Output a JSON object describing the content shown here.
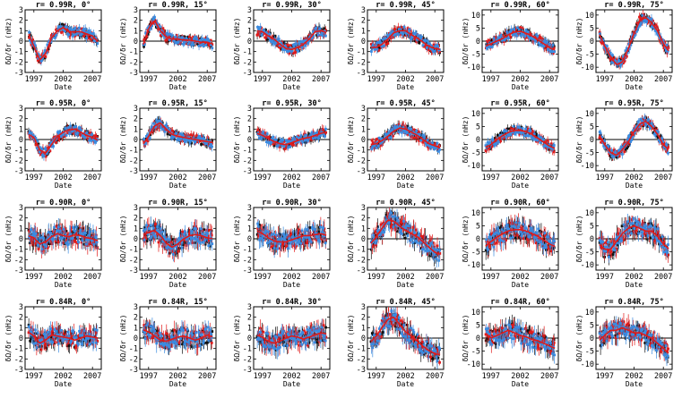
{
  "figure": {
    "rows": [
      {
        "ylabel": "δΩ/δr (nHz)",
        "xticks": [
          "1997",
          "2002",
          "2007"
        ],
        "xlabel": "Date",
        "panels": [
          {
            "title": "r= 0.99R, 0°",
            "yticks": [
              "-3",
              "-2",
              "-1",
              "0",
              "1",
              "2",
              "3"
            ]
          },
          {
            "title": "r= 0.99R, 15°",
            "yticks": [
              "-3",
              "-2",
              "-1",
              "0",
              "1",
              "2",
              "3"
            ]
          },
          {
            "title": "r= 0.99R, 30°",
            "yticks": [
              "-3",
              "-2",
              "-1",
              "0",
              "1",
              "2",
              "3"
            ]
          },
          {
            "title": "r= 0.99R, 45°",
            "yticks": [
              "-3",
              "-2",
              "-1",
              "0",
              "1",
              "2",
              "3"
            ]
          },
          {
            "title": "r= 0.99R, 60°",
            "yticks": [
              "-10",
              "-5",
              "0",
              "5",
              "10"
            ]
          },
          {
            "title": "r= 0.99R, 75°",
            "yticks": [
              "-10",
              "-5",
              "0",
              "5",
              "10"
            ]
          }
        ]
      },
      {
        "ylabel": "δΩ/δr (nHz)",
        "xticks": [
          "1997",
          "2002",
          "2007"
        ],
        "xlabel": "Date",
        "panels": [
          {
            "title": "r= 0.95R, 0°",
            "yticks": [
              "-3",
              "-2",
              "-1",
              "0",
              "1",
              "2",
              "3"
            ]
          },
          {
            "title": "r= 0.95R, 15°",
            "yticks": [
              "-3",
              "-2",
              "-1",
              "0",
              "1",
              "2",
              "3"
            ]
          },
          {
            "title": "r= 0.95R, 30°",
            "yticks": [
              "-3",
              "-2",
              "-1",
              "0",
              "1",
              "2",
              "3"
            ]
          },
          {
            "title": "r= 0.95R, 45°",
            "yticks": [
              "-3",
              "-2",
              "-1",
              "0",
              "1",
              "2",
              "3"
            ]
          },
          {
            "title": "r= 0.95R, 60°",
            "yticks": [
              "-10",
              "-5",
              "0",
              "5",
              "10"
            ]
          },
          {
            "title": "r= 0.95R, 75°",
            "yticks": [
              "-10",
              "-5",
              "0",
              "5",
              "10"
            ]
          }
        ]
      },
      {
        "ylabel": "δΩ/δr (nHz)",
        "xticks": [
          "1997",
          "2002",
          "2007"
        ],
        "xlabel": "Date",
        "panels": [
          {
            "title": "r= 0.90R, 0°",
            "yticks": [
              "-3",
              "-2",
              "-1",
              "0",
              "1",
              "2",
              "3"
            ]
          },
          {
            "title": "r= 0.90R, 15°",
            "yticks": [
              "-3",
              "-2",
              "-1",
              "0",
              "1",
              "2",
              "3"
            ]
          },
          {
            "title": "r= 0.90R, 30°",
            "yticks": [
              "-3",
              "-2",
              "-1",
              "0",
              "1",
              "2",
              "3"
            ]
          },
          {
            "title": "r= 0.90R, 45°",
            "yticks": [
              "-3",
              "-2",
              "-1",
              "0",
              "1",
              "2",
              "3"
            ]
          },
          {
            "title": "r= 0.90R, 60°",
            "yticks": [
              "-10",
              "-5",
              "0",
              "5",
              "10"
            ]
          },
          {
            "title": "r= 0.90R, 75°",
            "yticks": [
              "-10",
              "-5",
              "0",
              "5",
              "10"
            ]
          }
        ]
      },
      {
        "ylabel": "δΩ/δr (nHz)",
        "xticks": [
          "1997",
          "2002",
          "2007"
        ],
        "xlabel": "Date",
        "panels": [
          {
            "title": "r= 0.84R, 0°",
            "yticks": [
              "-3",
              "-2",
              "-1",
              "0",
              "1",
              "2",
              "3"
            ]
          },
          {
            "title": "r= 0.84R, 15°",
            "yticks": [
              "-3",
              "-2",
              "-1",
              "0",
              "1",
              "2",
              "3"
            ]
          },
          {
            "title": "r= 0.84R, 30°",
            "yticks": [
              "-3",
              "-2",
              "-1",
              "0",
              "1",
              "2",
              "3"
            ]
          },
          {
            "title": "r= 0.84R, 45°",
            "yticks": [
              "-3",
              "-2",
              "-1",
              "0",
              "1",
              "2",
              "3"
            ]
          },
          {
            "title": "r= 0.84R, 60°",
            "yticks": [
              "-10",
              "-5",
              "0",
              "5",
              "10"
            ]
          },
          {
            "title": "r= 0.84R, 75°",
            "yticks": [
              "-10",
              "-5",
              "0",
              "5",
              "10"
            ]
          }
        ]
      }
    ]
  },
  "chart_data": {
    "type": "scatter",
    "grid": false,
    "x_range": [
      1995.5,
      2008.5
    ],
    "series_colors": [
      "#111111",
      "#3b8be0",
      "#e01a1a"
    ],
    "panels": [
      {
        "row": 0,
        "col": 0,
        "ylim": [
          -3,
          3
        ],
        "x": [
          1996,
          1997,
          1998,
          1999,
          2000,
          2001,
          2002,
          2003,
          2004,
          2005,
          2006,
          2007,
          2008
        ],
        "y": [
          0.8,
          -0.5,
          -1.8,
          -1.2,
          0.3,
          1.0,
          1.3,
          0.9,
          0.9,
          0.9,
          0.7,
          0.5,
          -0.1
        ]
      },
      {
        "row": 0,
        "col": 1,
        "ylim": [
          -3,
          3
        ],
        "x": [
          1996,
          1997,
          1998,
          1999,
          2000,
          2001,
          2002,
          2003,
          2004,
          2005,
          2006,
          2007,
          2008
        ],
        "y": [
          -0.5,
          1.2,
          2.0,
          1.0,
          0.4,
          0.2,
          0.2,
          0.1,
          0.1,
          0.0,
          -0.1,
          -0.1,
          -0.3
        ]
      },
      {
        "row": 0,
        "col": 2,
        "ylim": [
          -3,
          3
        ],
        "x": [
          1996,
          1997,
          1998,
          1999,
          2000,
          2001,
          2002,
          2003,
          2004,
          2005,
          2006,
          2007,
          2008
        ],
        "y": [
          1.0,
          0.9,
          0.5,
          0.2,
          -0.3,
          -0.7,
          -0.8,
          -0.6,
          -0.3,
          0.2,
          0.9,
          1.0,
          0.8
        ]
      },
      {
        "row": 0,
        "col": 3,
        "ylim": [
          -3,
          3
        ],
        "x": [
          1996,
          1997,
          1998,
          1999,
          2000,
          2001,
          2002,
          2003,
          2004,
          2005,
          2006,
          2007,
          2008
        ],
        "y": [
          -0.6,
          -0.6,
          -0.3,
          0.2,
          0.8,
          1.0,
          1.0,
          0.6,
          0.3,
          -0.1,
          -0.5,
          -0.7,
          -0.8
        ]
      },
      {
        "row": 0,
        "col": 4,
        "ylim": [
          -12,
          12
        ],
        "x": [
          1996,
          1997,
          1998,
          1999,
          2000,
          2001,
          2002,
          2003,
          2004,
          2005,
          2006,
          2007,
          2008
        ],
        "y": [
          -2,
          -1,
          0,
          1,
          2.5,
          3.5,
          3.8,
          3,
          2,
          0.5,
          -1,
          -2.5,
          -3.5
        ]
      },
      {
        "row": 0,
        "col": 5,
        "ylim": [
          -12,
          12
        ],
        "x": [
          1996,
          1997,
          1998,
          1999,
          2000,
          2001,
          2002,
          2003,
          2004,
          2005,
          2006,
          2007,
          2008
        ],
        "y": [
          3,
          -2,
          -6,
          -9,
          -8,
          -3,
          3,
          8,
          9,
          7,
          4,
          -1,
          -4
        ]
      },
      {
        "row": 1,
        "col": 0,
        "ylim": [
          -3,
          3
        ],
        "x": [
          1996,
          1997,
          1998,
          1999,
          2000,
          2001,
          2002,
          2003,
          2004,
          2005,
          2006,
          2007,
          2008
        ],
        "y": [
          0.5,
          0.2,
          -1.0,
          -1.3,
          -0.5,
          0.3,
          0.7,
          0.9,
          1.0,
          0.7,
          0.4,
          0.2,
          -0.1
        ]
      },
      {
        "row": 1,
        "col": 1,
        "ylim": [
          -3,
          3
        ],
        "x": [
          1996,
          1997,
          1998,
          1999,
          2000,
          2001,
          2002,
          2003,
          2004,
          2005,
          2006,
          2007,
          2008
        ],
        "y": [
          -0.5,
          0.3,
          1.3,
          1.6,
          1.0,
          0.5,
          0.3,
          0.2,
          0.1,
          0.0,
          -0.1,
          -0.2,
          -0.3
        ]
      },
      {
        "row": 1,
        "col": 2,
        "ylim": [
          -3,
          3
        ],
        "x": [
          1996,
          1997,
          1998,
          1999,
          2000,
          2001,
          2002,
          2003,
          2004,
          2005,
          2006,
          2007,
          2008
        ],
        "y": [
          0.6,
          0.4,
          0.1,
          -0.2,
          -0.4,
          -0.5,
          -0.3,
          -0.1,
          0.1,
          0.2,
          0.4,
          0.6,
          0.7
        ]
      },
      {
        "row": 1,
        "col": 3,
        "ylim": [
          -3,
          3
        ],
        "x": [
          1996,
          1997,
          1998,
          1999,
          2000,
          2001,
          2002,
          2003,
          2004,
          2005,
          2006,
          2007,
          2008
        ],
        "y": [
          -0.5,
          -0.4,
          -0.1,
          0.3,
          0.8,
          1.1,
          1.0,
          0.7,
          0.4,
          0.0,
          -0.4,
          -0.6,
          -0.8
        ]
      },
      {
        "row": 1,
        "col": 4,
        "ylim": [
          -12,
          12
        ],
        "x": [
          1996,
          1997,
          1998,
          1999,
          2000,
          2001,
          2002,
          2003,
          2004,
          2005,
          2006,
          2007,
          2008
        ],
        "y": [
          -3,
          -2,
          0,
          1.5,
          2.8,
          3.5,
          3.5,
          3,
          2,
          0.5,
          -1,
          -2.5,
          -3.5
        ]
      },
      {
        "row": 1,
        "col": 5,
        "ylim": [
          -12,
          12
        ],
        "x": [
          1996,
          1997,
          1998,
          1999,
          2000,
          2001,
          2002,
          2003,
          2004,
          2005,
          2006,
          2007,
          2008
        ],
        "y": [
          2,
          -2,
          -5,
          -6,
          -4,
          -1,
          3,
          6,
          7,
          5,
          2,
          -2,
          -4
        ]
      },
      {
        "row": 2,
        "col": 0,
        "ylim": [
          -3,
          3
        ],
        "x": [
          1996,
          1997,
          1998,
          1999,
          2000,
          2001,
          2002,
          2003,
          2004,
          2005,
          2006,
          2007,
          2008
        ],
        "y": [
          0.3,
          0.1,
          -0.5,
          -0.3,
          0.2,
          0.5,
          0.3,
          0.2,
          0.4,
          0.3,
          0.1,
          0.0,
          -0.2
        ]
      },
      {
        "row": 2,
        "col": 1,
        "ylim": [
          -3,
          3
        ],
        "x": [
          1996,
          1997,
          1998,
          1999,
          2000,
          2001,
          2002,
          2003,
          2004,
          2005,
          2006,
          2007,
          2008
        ],
        "y": [
          0.4,
          0.6,
          0.8,
          0.3,
          -0.4,
          -0.8,
          -0.5,
          0.0,
          0.3,
          0.4,
          0.3,
          0.1,
          0.0
        ]
      },
      {
        "row": 2,
        "col": 2,
        "ylim": [
          -3,
          3
        ],
        "x": [
          1996,
          1997,
          1998,
          1999,
          2000,
          2001,
          2002,
          2003,
          2004,
          2005,
          2006,
          2007,
          2008
        ],
        "y": [
          0.8,
          0.5,
          0.1,
          -0.2,
          -0.3,
          -0.3,
          -0.1,
          0.1,
          0.3,
          0.3,
          0.4,
          0.5,
          0.3
        ]
      },
      {
        "row": 2,
        "col": 3,
        "ylim": [
          -3,
          3
        ],
        "x": [
          1996,
          1997,
          1998,
          1999,
          2000,
          2001,
          2002,
          2003,
          2004,
          2005,
          2006,
          2007,
          2008
        ],
        "y": [
          -0.5,
          0.2,
          1.0,
          1.8,
          1.7,
          1.2,
          0.8,
          0.5,
          0.2,
          -0.3,
          -0.8,
          -1.3,
          -1.5
        ]
      },
      {
        "row": 2,
        "col": 4,
        "ylim": [
          -12,
          12
        ],
        "x": [
          1996,
          1997,
          1998,
          1999,
          2000,
          2001,
          2002,
          2003,
          2004,
          2005,
          2006,
          2007,
          2008
        ],
        "y": [
          -3,
          -1,
          0.5,
          2,
          3,
          3.5,
          3.5,
          3,
          2,
          1,
          -0.5,
          -2,
          -3
        ]
      },
      {
        "row": 2,
        "col": 5,
        "ylim": [
          -12,
          12
        ],
        "x": [
          1996,
          1997,
          1998,
          1999,
          2000,
          2001,
          2002,
          2003,
          2004,
          2005,
          2006,
          2007,
          2008
        ],
        "y": [
          -2,
          -4,
          -4,
          -1,
          2,
          4,
          5,
          4,
          3,
          3,
          1,
          -2,
          -4
        ]
      },
      {
        "row": 3,
        "col": 0,
        "ylim": [
          -3,
          3
        ],
        "x": [
          1996,
          1997,
          1998,
          1999,
          2000,
          2001,
          2002,
          2003,
          2004,
          2005,
          2006,
          2007,
          2008
        ],
        "y": [
          0.6,
          0.2,
          -0.5,
          -0.2,
          0.3,
          0.2,
          0.1,
          0.0,
          -0.2,
          0.0,
          0.2,
          0.1,
          0.0
        ]
      },
      {
        "row": 3,
        "col": 1,
        "ylim": [
          -3,
          3
        ],
        "x": [
          1996,
          1997,
          1998,
          1999,
          2000,
          2001,
          2002,
          2003,
          2004,
          2005,
          2006,
          2007,
          2008
        ],
        "y": [
          0.8,
          0.6,
          0.2,
          -0.2,
          -0.3,
          -0.1,
          0.1,
          0.2,
          0.0,
          -0.2,
          0.0,
          0.3,
          0.1
        ]
      },
      {
        "row": 3,
        "col": 2,
        "ylim": [
          -3,
          3
        ],
        "x": [
          1996,
          1997,
          1998,
          1999,
          2000,
          2001,
          2002,
          2003,
          2004,
          2005,
          2006,
          2007,
          2008
        ],
        "y": [
          0.3,
          0.1,
          -0.3,
          -0.5,
          -0.3,
          0.0,
          0.2,
          0.1,
          -0.1,
          0.1,
          0.3,
          0.5,
          0.4
        ]
      },
      {
        "row": 3,
        "col": 3,
        "ylim": [
          -3,
          3
        ],
        "x": [
          1996,
          1997,
          1998,
          1999,
          2000,
          2001,
          2002,
          2003,
          2004,
          2005,
          2006,
          2007,
          2008
        ],
        "y": [
          -0.4,
          0.2,
          1.0,
          1.8,
          2.0,
          1.3,
          0.6,
          0.2,
          -0.3,
          -0.8,
          -1.2,
          -1.5,
          -1.6
        ]
      },
      {
        "row": 3,
        "col": 4,
        "ylim": [
          -12,
          12
        ],
        "x": [
          1996,
          1997,
          1998,
          1999,
          2000,
          2001,
          2002,
          2003,
          2004,
          2005,
          2006,
          2007,
          2008
        ],
        "y": [
          2,
          0,
          1,
          2,
          3,
          2,
          1,
          0.5,
          -0.5,
          -1,
          -2,
          -3,
          -4
        ]
      },
      {
        "row": 3,
        "col": 5,
        "ylim": [
          -12,
          12
        ],
        "x": [
          1996,
          1997,
          1998,
          1999,
          2000,
          2001,
          2002,
          2003,
          2004,
          2005,
          2006,
          2007,
          2008
        ],
        "y": [
          -1,
          1,
          3,
          3,
          4,
          3,
          2,
          2,
          1,
          0,
          -2,
          -4,
          -6
        ]
      }
    ]
  }
}
